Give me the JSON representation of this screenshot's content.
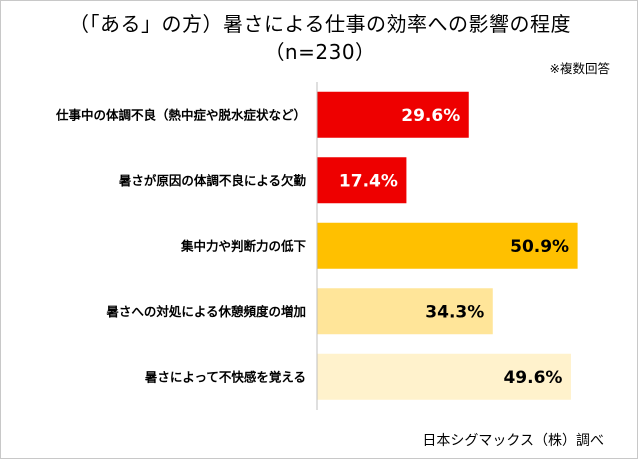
{
  "chart_data": {
    "type": "bar",
    "orientation": "horizontal",
    "title": "（「ある」の方）暑さによる仕事の効率への影響の程度",
    "subtitle": "（n=230）",
    "note": "※複数回答",
    "source": "日本シグマックス（株）調べ",
    "categories": [
      "仕事中の体調不良（熱中症や脱水症状など）",
      "暑さが原因の体調不良による欠勤",
      "集中力や判断力の低下",
      "暑さへの対処による休憩頻度の増加",
      "暑さによって不快感を覚える"
    ],
    "values": [
      29.6,
      17.4,
      50.9,
      34.3,
      49.6
    ],
    "value_labels": [
      "29.6%",
      "17.4%",
      "50.9%",
      "34.3%",
      "49.6%"
    ],
    "unit": "%",
    "xlim": [
      0,
      100
    ],
    "grid": false,
    "bar_colors": [
      "#ee0000",
      "#ee0000",
      "#ffc000",
      "#ffe599",
      "#fff2cc"
    ],
    "label_colors": [
      "#ffffff",
      "#ffffff",
      "#000000",
      "#000000",
      "#000000"
    ]
  }
}
